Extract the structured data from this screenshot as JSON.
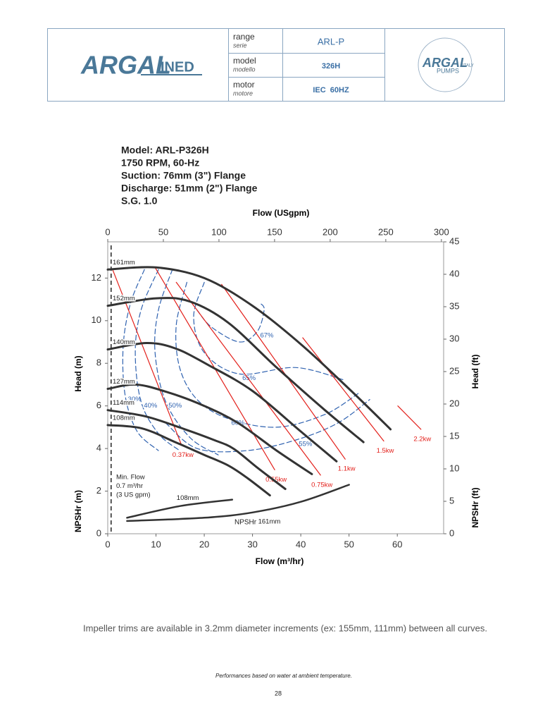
{
  "header": {
    "logo_left_main": "ARGAL",
    "logo_left_sub": "INED",
    "rows": [
      {
        "label": "range",
        "label_it": "serie",
        "value": "ARL-P"
      },
      {
        "label": "model",
        "label_it": "modello",
        "value": "326H"
      },
      {
        "label": "motor",
        "label_it": "motore",
        "value": "IEC  60HZ"
      }
    ],
    "logo_right_main": "ARGAL",
    "logo_right_italy": "ITALY",
    "logo_right_pumps": "PUMPS"
  },
  "chart_data": {
    "type": "line",
    "title_lines": [
      "Model: ARL-P326H",
      "1750 RPM, 60-Hz",
      "Suction: 76mm (3\") Flange",
      "Discharge: 51mm (2\") Flange",
      "S.G. 1.0"
    ],
    "x_label": "Flow (m³/hr)",
    "x2_label": "Flow (USgpm)",
    "y_label": "Head (m)",
    "y_label_npshr": "NPSHr (m)",
    "y2_label": "Head (ft)",
    "y2_label_npshr": "NPSHr (ft)",
    "xlim": [
      0,
      69.6
    ],
    "xticks": [
      0,
      10,
      20,
      30,
      40,
      50,
      60
    ],
    "x2lim": [
      0,
      302
    ],
    "x2ticks": [
      0,
      50,
      100,
      150,
      200,
      250,
      300
    ],
    "ylim": [
      0,
      13.7
    ],
    "yticks": [
      0,
      2,
      4,
      6,
      8,
      10,
      12
    ],
    "y2lim": [
      0,
      45
    ],
    "y2ticks": [
      0,
      5,
      10,
      15,
      20,
      25,
      30,
      35,
      40,
      45
    ],
    "min_flow": 0.7,
    "min_flow_labels": [
      "Min. Flow",
      "0.7 m³/hr",
      "(3 US gpm)"
    ],
    "npshr_label": "NPSHr",
    "series": [
      {
        "name": "161mm",
        "color": "#333333",
        "x": [
          0,
          10,
          20,
          30,
          40,
          50,
          58.6
        ],
        "values": [
          12.4,
          12.5,
          12.0,
          10.7,
          8.9,
          6.8,
          4.9
        ]
      },
      {
        "name": "152mm",
        "color": "#333333",
        "x": [
          0,
          10,
          17,
          25,
          35,
          45,
          53
        ],
        "values": [
          10.7,
          11.05,
          10.9,
          9.9,
          7.8,
          5.8,
          4.3
        ]
      },
      {
        "name": "140mm",
        "color": "#333333",
        "x": [
          0,
          8,
          14,
          21,
          30,
          40,
          47.4
        ],
        "values": [
          8.65,
          8.95,
          8.7,
          7.9,
          6.7,
          4.8,
          3.4
        ]
      },
      {
        "name": "127mm",
        "color": "#333333",
        "x": [
          0,
          6,
          13,
          20,
          27,
          35,
          42.3
        ],
        "values": [
          6.8,
          7.0,
          6.6,
          6.0,
          5.2,
          3.9,
          2.8
        ]
      },
      {
        "name": "114mm",
        "color": "#333333",
        "x": [
          0,
          8,
          16,
          22,
          26,
          31,
          36.8
        ],
        "values": [
          5.8,
          5.5,
          4.9,
          4.4,
          4.0,
          3.1,
          2.1
        ]
      },
      {
        "name": "108mm",
        "color": "#333333",
        "x": [
          0,
          7,
          14,
          20,
          25,
          29,
          33.6
        ],
        "values": [
          5.1,
          4.95,
          4.3,
          3.7,
          3.2,
          2.6,
          1.8
        ]
      }
    ],
    "npshr_series": [
      {
        "name": "108mm",
        "color": "#333333",
        "x": [
          4,
          15,
          25.8
        ],
        "values": [
          0.75,
          1.3,
          1.6
        ]
      },
      {
        "name": "161mm",
        "color": "#333333",
        "x": [
          4,
          20,
          30,
          40,
          50
        ],
        "values": [
          0.6,
          0.75,
          1.0,
          1.5,
          2.3
        ]
      }
    ],
    "efficiency_series": [
      {
        "name": "30%",
        "color": "#2f62b0",
        "x": [
          7.6,
          4.7,
          3.2,
          3.6,
          6.1,
          10.5
        ],
        "values": [
          12.4,
          10.8,
          8.8,
          6.5,
          4.8,
          3.9
        ]
      },
      {
        "name": "40%",
        "color": "#2f62b0",
        "x": [
          10.5,
          6.9,
          5.7,
          6.9,
          10.5,
          14.9
        ],
        "values": [
          12.4,
          10.5,
          8.5,
          6.2,
          4.7,
          3.9
        ]
      },
      {
        "name": "50%",
        "color": "#2f62b0",
        "x": [
          13.4,
          10.5,
          9.8,
          12,
          17.1,
          22.9
        ],
        "values": [
          12.4,
          10.5,
          8.5,
          6.2,
          4.5,
          3.7
        ]
      },
      {
        "name": "60%",
        "color": "#2f62b0",
        "x": [
          16.4,
          14.2,
          14.9,
          18.5,
          25,
          35,
          45,
          52
        ],
        "values": [
          11.8,
          9.8,
          7.8,
          6.3,
          5.4,
          5.0,
          5.6,
          6.6
        ]
      },
      {
        "name": "55%",
        "color": "#2f62b0",
        "x": [
          12,
          18.5,
          28.8,
          39,
          47.7,
          54.3
        ],
        "values": [
          5.2,
          4.0,
          3.9,
          4.4,
          5.2,
          6.3
        ]
      },
      {
        "name": "65%",
        "color": "#2f62b0",
        "x": [
          20,
          17.8,
          20,
          27.3,
          39,
          49.2
        ],
        "values": [
          11.8,
          10.2,
          8.5,
          7.5,
          7.8,
          7.2
        ]
      },
      {
        "name": "67%",
        "color": "#2f62b0",
        "x": [
          18.5,
          21.5,
          27.3,
          31,
          32.4,
          31.7
        ],
        "values": [
          10.5,
          9.7,
          9.0,
          9.5,
          10.5,
          10.8
        ]
      }
    ],
    "power_series": [
      {
        "name": "0.37kw",
        "color": "#e3201b",
        "x": [
          1,
          15.3
        ],
        "values": [
          12.4,
          4.15
        ]
      },
      {
        "name": "0.55kw",
        "color": "#e3201b",
        "x": [
          9.8,
          34.6
        ],
        "values": [
          12.5,
          3.0
        ]
      },
      {
        "name": "0.75kw",
        "color": "#e3201b",
        "x": [
          14.2,
          44.1
        ],
        "values": [
          11.8,
          2.75
        ]
      },
      {
        "name": "1.1kw",
        "color": "#e3201b",
        "x": [
          23.6,
          49.2
        ],
        "values": [
          11.7,
          3.5
        ]
      },
      {
        "name": "1.5kw",
        "color": "#e3201b",
        "x": [
          40.4,
          57.2
        ],
        "values": [
          9.2,
          4.35
        ]
      },
      {
        "name": "2.2kw",
        "color": "#e3201b",
        "x": [
          60.1,
          64.9
        ],
        "values": [
          6.0,
          4.9
        ]
      }
    ]
  },
  "footer": {
    "note": "Impeller trims are available in 3.2mm diameter increments (ex: 155mm, 111mm) between all curves.",
    "disclaimer": "Performances based on water at ambient temperature.",
    "page": "28"
  }
}
